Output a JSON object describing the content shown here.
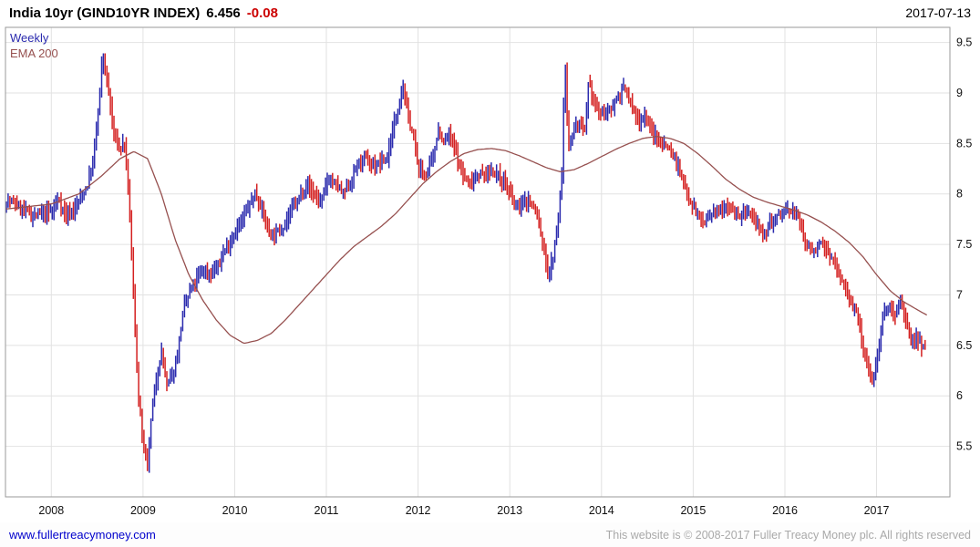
{
  "header": {
    "title": "India 10yr (GIND10YR INDEX)",
    "last_value": "6.456",
    "change": "-0.08",
    "date": "2017-07-13"
  },
  "chart_legend": {
    "timeframe": "Weekly",
    "overlay": "EMA 200"
  },
  "footer": {
    "site_link": "www.fullertreacymoney.com",
    "copyright": "This website is © 2008-2017 Fuller Treacy Money plc. All rights reserved"
  },
  "chart_data": {
    "type": "candlestick",
    "title": "India 10yr (GIND10YR INDEX)",
    "timeframe": "Weekly",
    "last_close": 6.456,
    "change": -0.08,
    "grid": true,
    "x_ticks": [
      2008,
      2009,
      2010,
      2011,
      2012,
      2013,
      2014,
      2015,
      2016,
      2017
    ],
    "y_ticks": [
      9.5,
      9,
      8.5,
      8,
      7.5,
      7,
      6.5,
      6,
      5.5
    ],
    "x_range": [
      2007.5,
      2017.8
    ],
    "y_range": [
      5.0,
      9.65
    ],
    "colors": {
      "up": "#2a2aae",
      "down": "#d42020",
      "ema": "#96504f",
      "grid": "#e2e2e2",
      "border": "#9a9a9a",
      "axis_text": "#111111",
      "link": "#0000cc",
      "negative": "#cc0000",
      "footer_text": "#a9a9a9"
    },
    "series": [
      {
        "name": "India 10yr yield",
        "style": "candle",
        "points": [
          [
            2007.5,
            7.95
          ],
          [
            2007.6,
            7.9
          ],
          [
            2007.7,
            7.85
          ],
          [
            2007.8,
            7.78
          ],
          [
            2007.9,
            7.8
          ],
          [
            2008.0,
            7.82
          ],
          [
            2008.08,
            7.95
          ],
          [
            2008.16,
            7.78
          ],
          [
            2008.24,
            7.85
          ],
          [
            2008.32,
            7.95
          ],
          [
            2008.4,
            8.1
          ],
          [
            2008.46,
            8.35
          ],
          [
            2008.52,
            8.9
          ],
          [
            2008.56,
            9.4
          ],
          [
            2008.62,
            9.05
          ],
          [
            2008.68,
            8.6
          ],
          [
            2008.74,
            8.45
          ],
          [
            2008.8,
            8.5
          ],
          [
            2008.85,
            7.9
          ],
          [
            2008.9,
            6.9
          ],
          [
            2008.95,
            6.0
          ],
          [
            2009.0,
            5.5
          ],
          [
            2009.05,
            5.3
          ],
          [
            2009.1,
            5.9
          ],
          [
            2009.15,
            6.2
          ],
          [
            2009.2,
            6.45
          ],
          [
            2009.26,
            6.1
          ],
          [
            2009.32,
            6.2
          ],
          [
            2009.38,
            6.45
          ],
          [
            2009.44,
            6.85
          ],
          [
            2009.5,
            7.0
          ],
          [
            2009.58,
            7.15
          ],
          [
            2009.66,
            7.25
          ],
          [
            2009.74,
            7.2
          ],
          [
            2009.82,
            7.3
          ],
          [
            2009.9,
            7.45
          ],
          [
            2009.98,
            7.6
          ],
          [
            2010.06,
            7.7
          ],
          [
            2010.14,
            7.85
          ],
          [
            2010.22,
            8.0
          ],
          [
            2010.3,
            7.85
          ],
          [
            2010.38,
            7.6
          ],
          [
            2010.46,
            7.62
          ],
          [
            2010.54,
            7.7
          ],
          [
            2010.62,
            7.85
          ],
          [
            2010.7,
            7.95
          ],
          [
            2010.78,
            8.1
          ],
          [
            2010.86,
            8.0
          ],
          [
            2010.94,
            7.92
          ],
          [
            2011.02,
            8.15
          ],
          [
            2011.1,
            8.1
          ],
          [
            2011.18,
            8.0
          ],
          [
            2011.26,
            8.1
          ],
          [
            2011.34,
            8.3
          ],
          [
            2011.42,
            8.35
          ],
          [
            2011.5,
            8.28
          ],
          [
            2011.58,
            8.3
          ],
          [
            2011.66,
            8.35
          ],
          [
            2011.74,
            8.7
          ],
          [
            2011.8,
            8.95
          ],
          [
            2011.84,
            9.05
          ],
          [
            2011.88,
            8.8
          ],
          [
            2011.94,
            8.6
          ],
          [
            2012.0,
            8.25
          ],
          [
            2012.08,
            8.2
          ],
          [
            2012.16,
            8.35
          ],
          [
            2012.22,
            8.65
          ],
          [
            2012.28,
            8.5
          ],
          [
            2012.34,
            8.6
          ],
          [
            2012.4,
            8.45
          ],
          [
            2012.48,
            8.2
          ],
          [
            2012.56,
            8.1
          ],
          [
            2012.64,
            8.2
          ],
          [
            2012.72,
            8.18
          ],
          [
            2012.8,
            8.22
          ],
          [
            2012.88,
            8.18
          ],
          [
            2012.96,
            8.1
          ],
          [
            2013.04,
            7.9
          ],
          [
            2013.12,
            7.88
          ],
          [
            2013.2,
            7.95
          ],
          [
            2013.28,
            7.85
          ],
          [
            2013.36,
            7.5
          ],
          [
            2013.42,
            7.2
          ],
          [
            2013.47,
            7.35
          ],
          [
            2013.52,
            7.7
          ],
          [
            2013.57,
            8.2
          ],
          [
            2013.6,
            9.4
          ],
          [
            2013.64,
            8.45
          ],
          [
            2013.7,
            8.65
          ],
          [
            2013.76,
            8.7
          ],
          [
            2013.82,
            8.6
          ],
          [
            2013.86,
            9.1
          ],
          [
            2013.92,
            8.9
          ],
          [
            2014.0,
            8.8
          ],
          [
            2014.08,
            8.82
          ],
          [
            2014.16,
            8.95
          ],
          [
            2014.24,
            9.05
          ],
          [
            2014.32,
            8.9
          ],
          [
            2014.4,
            8.72
          ],
          [
            2014.48,
            8.78
          ],
          [
            2014.56,
            8.6
          ],
          [
            2014.64,
            8.52
          ],
          [
            2014.72,
            8.48
          ],
          [
            2014.8,
            8.35
          ],
          [
            2014.88,
            8.15
          ],
          [
            2014.96,
            7.95
          ],
          [
            2015.04,
            7.8
          ],
          [
            2015.12,
            7.72
          ],
          [
            2015.2,
            7.78
          ],
          [
            2015.28,
            7.85
          ],
          [
            2015.36,
            7.9
          ],
          [
            2015.44,
            7.82
          ],
          [
            2015.52,
            7.78
          ],
          [
            2015.6,
            7.8
          ],
          [
            2015.68,
            7.72
          ],
          [
            2015.76,
            7.55
          ],
          [
            2015.84,
            7.72
          ],
          [
            2015.92,
            7.78
          ],
          [
            2016.0,
            7.82
          ],
          [
            2016.08,
            7.85
          ],
          [
            2016.16,
            7.72
          ],
          [
            2016.24,
            7.5
          ],
          [
            2016.32,
            7.45
          ],
          [
            2016.4,
            7.5
          ],
          [
            2016.48,
            7.42
          ],
          [
            2016.56,
            7.25
          ],
          [
            2016.64,
            7.1
          ],
          [
            2016.72,
            6.95
          ],
          [
            2016.8,
            6.78
          ],
          [
            2016.86,
            6.4
          ],
          [
            2016.92,
            6.25
          ],
          [
            2016.96,
            6.15
          ],
          [
            2017.02,
            6.45
          ],
          [
            2017.08,
            6.85
          ],
          [
            2017.14,
            6.9
          ],
          [
            2017.2,
            6.8
          ],
          [
            2017.26,
            6.95
          ],
          [
            2017.32,
            6.7
          ],
          [
            2017.38,
            6.55
          ],
          [
            2017.44,
            6.6
          ],
          [
            2017.5,
            6.5
          ],
          [
            2017.53,
            6.456
          ]
        ]
      },
      {
        "name": "EMA 200",
        "style": "line",
        "points": [
          [
            2007.5,
            7.85
          ],
          [
            2008.0,
            7.9
          ],
          [
            2008.3,
            8.0
          ],
          [
            2008.55,
            8.18
          ],
          [
            2008.75,
            8.35
          ],
          [
            2008.9,
            8.42
          ],
          [
            2009.05,
            8.35
          ],
          [
            2009.2,
            8.0
          ],
          [
            2009.35,
            7.55
          ],
          [
            2009.5,
            7.2
          ],
          [
            2009.65,
            6.95
          ],
          [
            2009.8,
            6.75
          ],
          [
            2009.95,
            6.6
          ],
          [
            2010.1,
            6.52
          ],
          [
            2010.25,
            6.55
          ],
          [
            2010.4,
            6.62
          ],
          [
            2010.55,
            6.75
          ],
          [
            2010.7,
            6.9
          ],
          [
            2010.85,
            7.05
          ],
          [
            2011.0,
            7.2
          ],
          [
            2011.15,
            7.35
          ],
          [
            2011.3,
            7.48
          ],
          [
            2011.45,
            7.58
          ],
          [
            2011.6,
            7.68
          ],
          [
            2011.75,
            7.8
          ],
          [
            2011.9,
            7.95
          ],
          [
            2012.05,
            8.1
          ],
          [
            2012.2,
            8.22
          ],
          [
            2012.35,
            8.32
          ],
          [
            2012.5,
            8.4
          ],
          [
            2012.65,
            8.44
          ],
          [
            2012.8,
            8.45
          ],
          [
            2012.95,
            8.43
          ],
          [
            2013.1,
            8.38
          ],
          [
            2013.25,
            8.32
          ],
          [
            2013.4,
            8.26
          ],
          [
            2013.55,
            8.22
          ],
          [
            2013.7,
            8.24
          ],
          [
            2013.85,
            8.3
          ],
          [
            2014.0,
            8.37
          ],
          [
            2014.15,
            8.44
          ],
          [
            2014.3,
            8.5
          ],
          [
            2014.45,
            8.55
          ],
          [
            2014.6,
            8.57
          ],
          [
            2014.75,
            8.55
          ],
          [
            2014.9,
            8.5
          ],
          [
            2015.05,
            8.4
          ],
          [
            2015.2,
            8.28
          ],
          [
            2015.35,
            8.15
          ],
          [
            2015.5,
            8.05
          ],
          [
            2015.65,
            7.97
          ],
          [
            2015.8,
            7.92
          ],
          [
            2015.95,
            7.88
          ],
          [
            2016.1,
            7.84
          ],
          [
            2016.25,
            7.79
          ],
          [
            2016.4,
            7.72
          ],
          [
            2016.55,
            7.63
          ],
          [
            2016.7,
            7.52
          ],
          [
            2016.85,
            7.38
          ],
          [
            2017.0,
            7.2
          ],
          [
            2017.15,
            7.04
          ],
          [
            2017.3,
            6.93
          ],
          [
            2017.45,
            6.85
          ],
          [
            2017.55,
            6.8
          ]
        ]
      }
    ]
  }
}
